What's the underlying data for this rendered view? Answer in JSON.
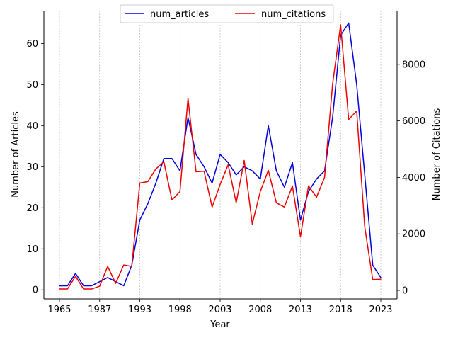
{
  "chart_data": {
    "type": "line",
    "xlabel": "Year",
    "ylabel_left": "Number of Articles",
    "ylabel_right": "Number of Citations",
    "x_tick_labels": [
      "1965",
      "1987",
      "1993",
      "1998",
      "2003",
      "2008",
      "2013",
      "2018",
      "2023"
    ],
    "y_left_ticks": [
      0,
      10,
      20,
      30,
      40,
      50,
      60
    ],
    "y_right_ticks": [
      0,
      2000,
      4000,
      6000,
      8000
    ],
    "y_left_lim": [
      -2.2,
      68
    ],
    "y_right_lim": [
      -300,
      9900
    ],
    "grid_x": true,
    "grid_y": false,
    "legend_placement": "upper-center",
    "series": [
      {
        "name": "num_articles",
        "axis": "left",
        "color": "#0000dd",
        "values": [
          1,
          1,
          4,
          1,
          1,
          2,
          3,
          2,
          1,
          6,
          17,
          21,
          26,
          32,
          32,
          29,
          42,
          33,
          30,
          26,
          33,
          31,
          28,
          30,
          29,
          27,
          40,
          29,
          25,
          31,
          17,
          24,
          27,
          29,
          42,
          62,
          65,
          50,
          28,
          6,
          3
        ]
      },
      {
        "name": "num_citations",
        "axis": "right",
        "color": "#ee0000",
        "values": [
          50,
          50,
          500,
          50,
          50,
          150,
          850,
          250,
          900,
          850,
          3800,
          3850,
          4300,
          4550,
          3200,
          3500,
          6800,
          4200,
          4220,
          2950,
          3750,
          4450,
          3100,
          4600,
          2350,
          3500,
          4250,
          3100,
          2950,
          3700,
          1900,
          3700,
          3300,
          4000,
          7300,
          9400,
          6050,
          6350,
          2250,
          380,
          400
        ]
      }
    ]
  }
}
